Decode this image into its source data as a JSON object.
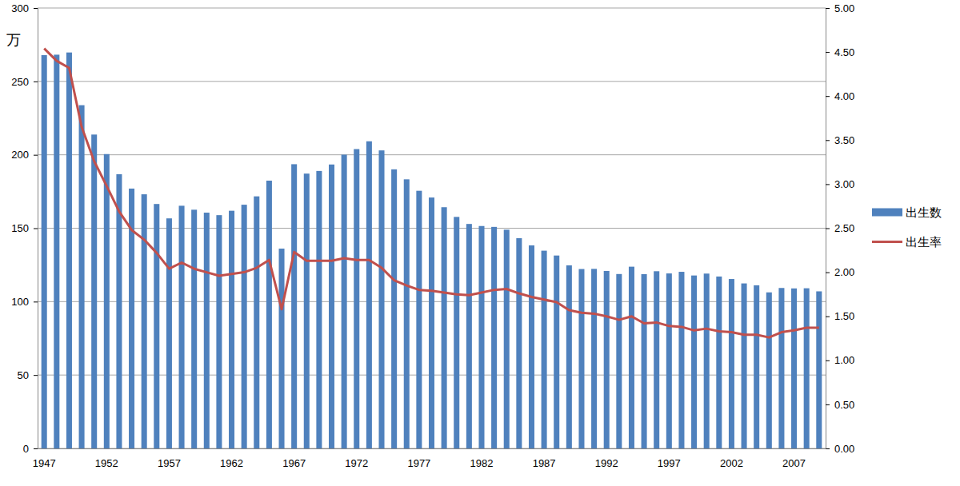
{
  "chart_data": {
    "type": "bar",
    "y_label": "万",
    "categories": [
      "1947",
      null,
      null,
      null,
      null,
      "1952",
      null,
      null,
      null,
      null,
      "1957",
      null,
      null,
      null,
      null,
      "1962",
      null,
      null,
      null,
      null,
      "1967",
      null,
      null,
      null,
      null,
      "1972",
      null,
      null,
      null,
      null,
      "1977",
      null,
      null,
      null,
      null,
      "1982",
      null,
      null,
      null,
      null,
      "1987",
      null,
      null,
      null,
      null,
      "1992",
      null,
      null,
      null,
      null,
      "1997",
      null,
      null,
      null,
      null,
      "2002",
      null,
      null,
      null,
      null,
      "2007",
      null,
      null
    ],
    "series": [
      {
        "name": "出生数",
        "type": "bar",
        "color": "#4f81bd",
        "values": [
          267.9,
          268.2,
          269.7,
          233.8,
          213.8,
          200.5,
          186.8,
          177.0,
          173.1,
          166.5,
          156.7,
          165.3,
          162.6,
          160.6,
          158.9,
          161.9,
          166.0,
          171.7,
          182.4,
          136.1,
          193.6,
          187.2,
          189.0,
          193.4,
          200.1,
          203.9,
          209.2,
          203.0,
          190.1,
          183.3,
          175.5,
          170.9,
          164.3,
          157.7,
          152.9,
          151.5,
          150.9,
          149.0,
          143.2,
          138.3,
          134.7,
          131.4,
          124.7,
          122.2,
          122.3,
          120.9,
          118.8,
          123.8,
          118.7,
          120.7,
          119.2,
          120.3,
          117.8,
          119.1,
          117.1,
          115.4,
          112.4,
          111.1,
          106.3,
          109.3,
          109.0,
          109.1,
          107.0
        ]
      },
      {
        "name": "出生率",
        "type": "line",
        "axis": "y2",
        "color": "#c0504d",
        "values": [
          4.54,
          4.4,
          4.32,
          3.65,
          3.26,
          2.98,
          2.69,
          2.48,
          2.37,
          2.22,
          2.04,
          2.11,
          2.04,
          2.0,
          1.96,
          1.98,
          2.0,
          2.05,
          2.14,
          1.58,
          2.23,
          2.13,
          2.13,
          2.13,
          2.16,
          2.14,
          2.14,
          2.05,
          1.91,
          1.85,
          1.8,
          1.79,
          1.77,
          1.75,
          1.74,
          1.77,
          1.8,
          1.81,
          1.76,
          1.72,
          1.69,
          1.66,
          1.57,
          1.54,
          1.53,
          1.5,
          1.46,
          1.5,
          1.42,
          1.43,
          1.39,
          1.38,
          1.34,
          1.36,
          1.33,
          1.32,
          1.29,
          1.29,
          1.26,
          1.32,
          1.34,
          1.37,
          1.37
        ]
      }
    ],
    "ylim": [
      0,
      300
    ],
    "yticks": [
      0,
      50,
      100,
      150,
      200,
      250,
      300
    ],
    "y2lim": [
      0,
      5
    ],
    "y2ticks": [
      {
        "value": 0,
        "label": "0.00"
      },
      {
        "value": 0.5,
        "label": "0.50"
      },
      {
        "value": 1,
        "label": "1.00"
      },
      {
        "value": 1.5,
        "label": "1.50"
      },
      {
        "value": 2,
        "label": "2.00"
      },
      {
        "value": 2.5,
        "label": "2.50"
      },
      {
        "value": 3,
        "label": "3.00"
      },
      {
        "value": 3.5,
        "label": "3.50"
      },
      {
        "value": 4,
        "label": "4.00"
      },
      {
        "value": 4.5,
        "label": "4.50"
      },
      {
        "value": 5,
        "label": "5.00"
      }
    ],
    "grid": true,
    "legend": "right"
  }
}
